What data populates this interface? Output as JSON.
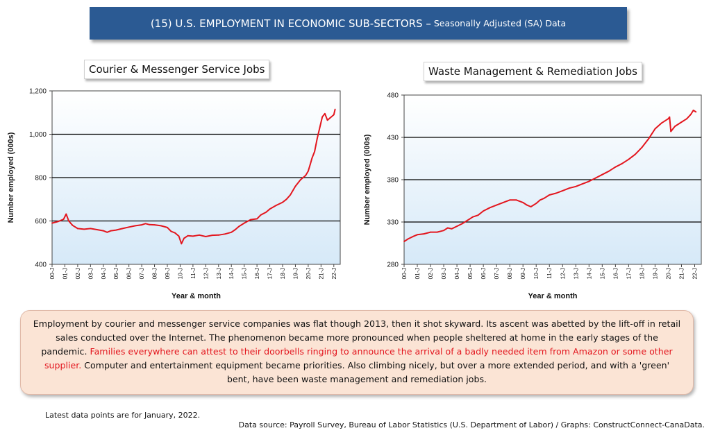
{
  "header": {
    "title_main": "(15) U.S. EMPLOYMENT IN ECONOMIC SUB-SECTORS –",
    "title_sub": "Seasonally Adjusted (SA) Data"
  },
  "colors": {
    "banner": "#2b5a93",
    "series": "#e3161e",
    "note_bg": "#fbe4d5"
  },
  "chart_data": [
    {
      "type": "line",
      "title": "Courier & Messenger Service Jobs",
      "xlabel": "Year & month",
      "ylabel": "Number employed (000s)",
      "ylim": [
        400,
        1200
      ],
      "yticks": [
        400,
        600,
        800,
        1000,
        1200
      ],
      "ytick_labels": [
        "400",
        "600",
        "800",
        "1,000",
        "1,200"
      ],
      "xtick_labels": [
        "00-J",
        "01-J",
        "02-J",
        "03-J",
        "04-J",
        "05-J",
        "06-J",
        "07-J",
        "08-J",
        "09-J",
        "10-J",
        "11-J",
        "12-J",
        "13-J",
        "14-J",
        "15-J",
        "16-J",
        "17-J",
        "18-J",
        "19-J",
        "20-J",
        "21-J",
        "22-J"
      ],
      "x_range": [
        2000.0,
        2022.5
      ],
      "grid": "horizontal",
      "series": [
        {
          "x": [
            2000.0,
            2000.5,
            2000.9,
            2001.1,
            2001.3,
            2001.6,
            2002.0,
            2002.5,
            2003.0,
            2003.5,
            2004.0,
            2004.3,
            2004.6,
            2005.0,
            2005.5,
            2006.0,
            2006.5,
            2007.0,
            2007.3,
            2007.6,
            2008.0,
            2008.5,
            2009.0,
            2009.3,
            2009.6,
            2009.9,
            2010.1,
            2010.3,
            2010.6,
            2011.0,
            2011.5,
            2012.0,
            2012.5,
            2013.0,
            2013.5,
            2014.0,
            2014.3,
            2014.6,
            2015.0,
            2015.5,
            2016.0,
            2016.3,
            2016.7,
            2017.0,
            2017.5,
            2018.0,
            2018.3,
            2018.6,
            2019.0,
            2019.4,
            2019.8,
            2020.0,
            2020.15,
            2020.3,
            2020.5,
            2020.7,
            2020.9,
            2021.1,
            2021.3,
            2021.5,
            2021.7,
            2022.0,
            2022.1
          ],
          "values": [
            590,
            598,
            608,
            632,
            600,
            580,
            565,
            562,
            565,
            560,
            555,
            548,
            555,
            558,
            565,
            572,
            578,
            582,
            588,
            583,
            582,
            578,
            570,
            552,
            545,
            530,
            495,
            520,
            532,
            530,
            535,
            528,
            534,
            535,
            540,
            548,
            560,
            575,
            590,
            606,
            610,
            628,
            640,
            655,
            672,
            686,
            700,
            720,
            760,
            790,
            810,
            830,
            860,
            890,
            920,
            980,
            1030,
            1080,
            1095,
            1065,
            1075,
            1090,
            1115
          ]
        }
      ]
    },
    {
      "type": "line",
      "title": "Waste Management & Remediation Jobs",
      "xlabel": "Year & month",
      "ylabel": "Number employed (000s)",
      "ylim": [
        280,
        480
      ],
      "yticks": [
        280,
        330,
        380,
        430,
        480
      ],
      "ytick_labels": [
        "280",
        "330",
        "380",
        "430",
        "480"
      ],
      "xtick_labels": [
        "00-J",
        "01-J",
        "02-J",
        "03-J",
        "04-J",
        "05-J",
        "06-J",
        "07-J",
        "08-J",
        "09-J",
        "10-J",
        "11-J",
        "12-J",
        "13-J",
        "14-J",
        "15-J",
        "16-J",
        "17-J",
        "18-J",
        "19-J",
        "20-J",
        "21-J",
        "22-J"
      ],
      "x_range": [
        2000.0,
        2022.5
      ],
      "grid": "horizontal",
      "series": [
        {
          "x": [
            2000.0,
            2000.3,
            2000.7,
            2001.0,
            2001.5,
            2002.0,
            2002.5,
            2003.0,
            2003.3,
            2003.6,
            2004.0,
            2004.4,
            2004.8,
            2005.2,
            2005.6,
            2006.0,
            2006.5,
            2007.0,
            2007.5,
            2008.0,
            2008.5,
            2009.0,
            2009.3,
            2009.6,
            2010.0,
            2010.3,
            2010.6,
            2011.0,
            2011.5,
            2012.0,
            2012.5,
            2013.0,
            2013.5,
            2014.0,
            2014.5,
            2015.0,
            2015.5,
            2016.0,
            2016.5,
            2017.0,
            2017.5,
            2018.0,
            2018.5,
            2019.0,
            2019.5,
            2020.0,
            2020.1,
            2020.2,
            2020.5,
            2021.0,
            2021.4,
            2021.7,
            2021.9,
            2022.1
          ],
          "values": [
            307,
            310,
            313,
            315,
            316,
            318,
            318,
            320,
            323,
            322,
            325,
            328,
            332,
            336,
            338,
            343,
            347,
            350,
            353,
            356,
            356,
            353,
            350,
            348,
            352,
            356,
            358,
            362,
            364,
            367,
            370,
            372,
            375,
            378,
            382,
            386,
            390,
            395,
            399,
            404,
            410,
            418,
            428,
            440,
            447,
            452,
            454,
            437,
            443,
            448,
            452,
            457,
            462,
            460
          ]
        }
      ]
    }
  ],
  "note": {
    "text_a": "Employment by courier and messenger service companies was flat though 2013, then it shot skyward. Its ascent was abetted by the lift-off in retail sales conducted over the Internet. The phenomenon became more pronounced when people sheltered at home in the early stages of the pandemic. ",
    "text_red": "Families everywhere can attest to their doorbells ringing to announce the arrival of a badly needed item from Amazon or some other supplier.",
    "text_b": " Computer and entertainment equipment became priorities. Also climbing nicely, but over a more extended period, and with a 'green' bent, have been waste management and remediation jobs."
  },
  "footer": {
    "latest": "Latest data points are for January, 2022.",
    "source": "Data source: Payroll Survey, Bureau of Labor Statistics (U.S. Department of Labor) / Graphs: ConstructConnect-CanaData."
  }
}
